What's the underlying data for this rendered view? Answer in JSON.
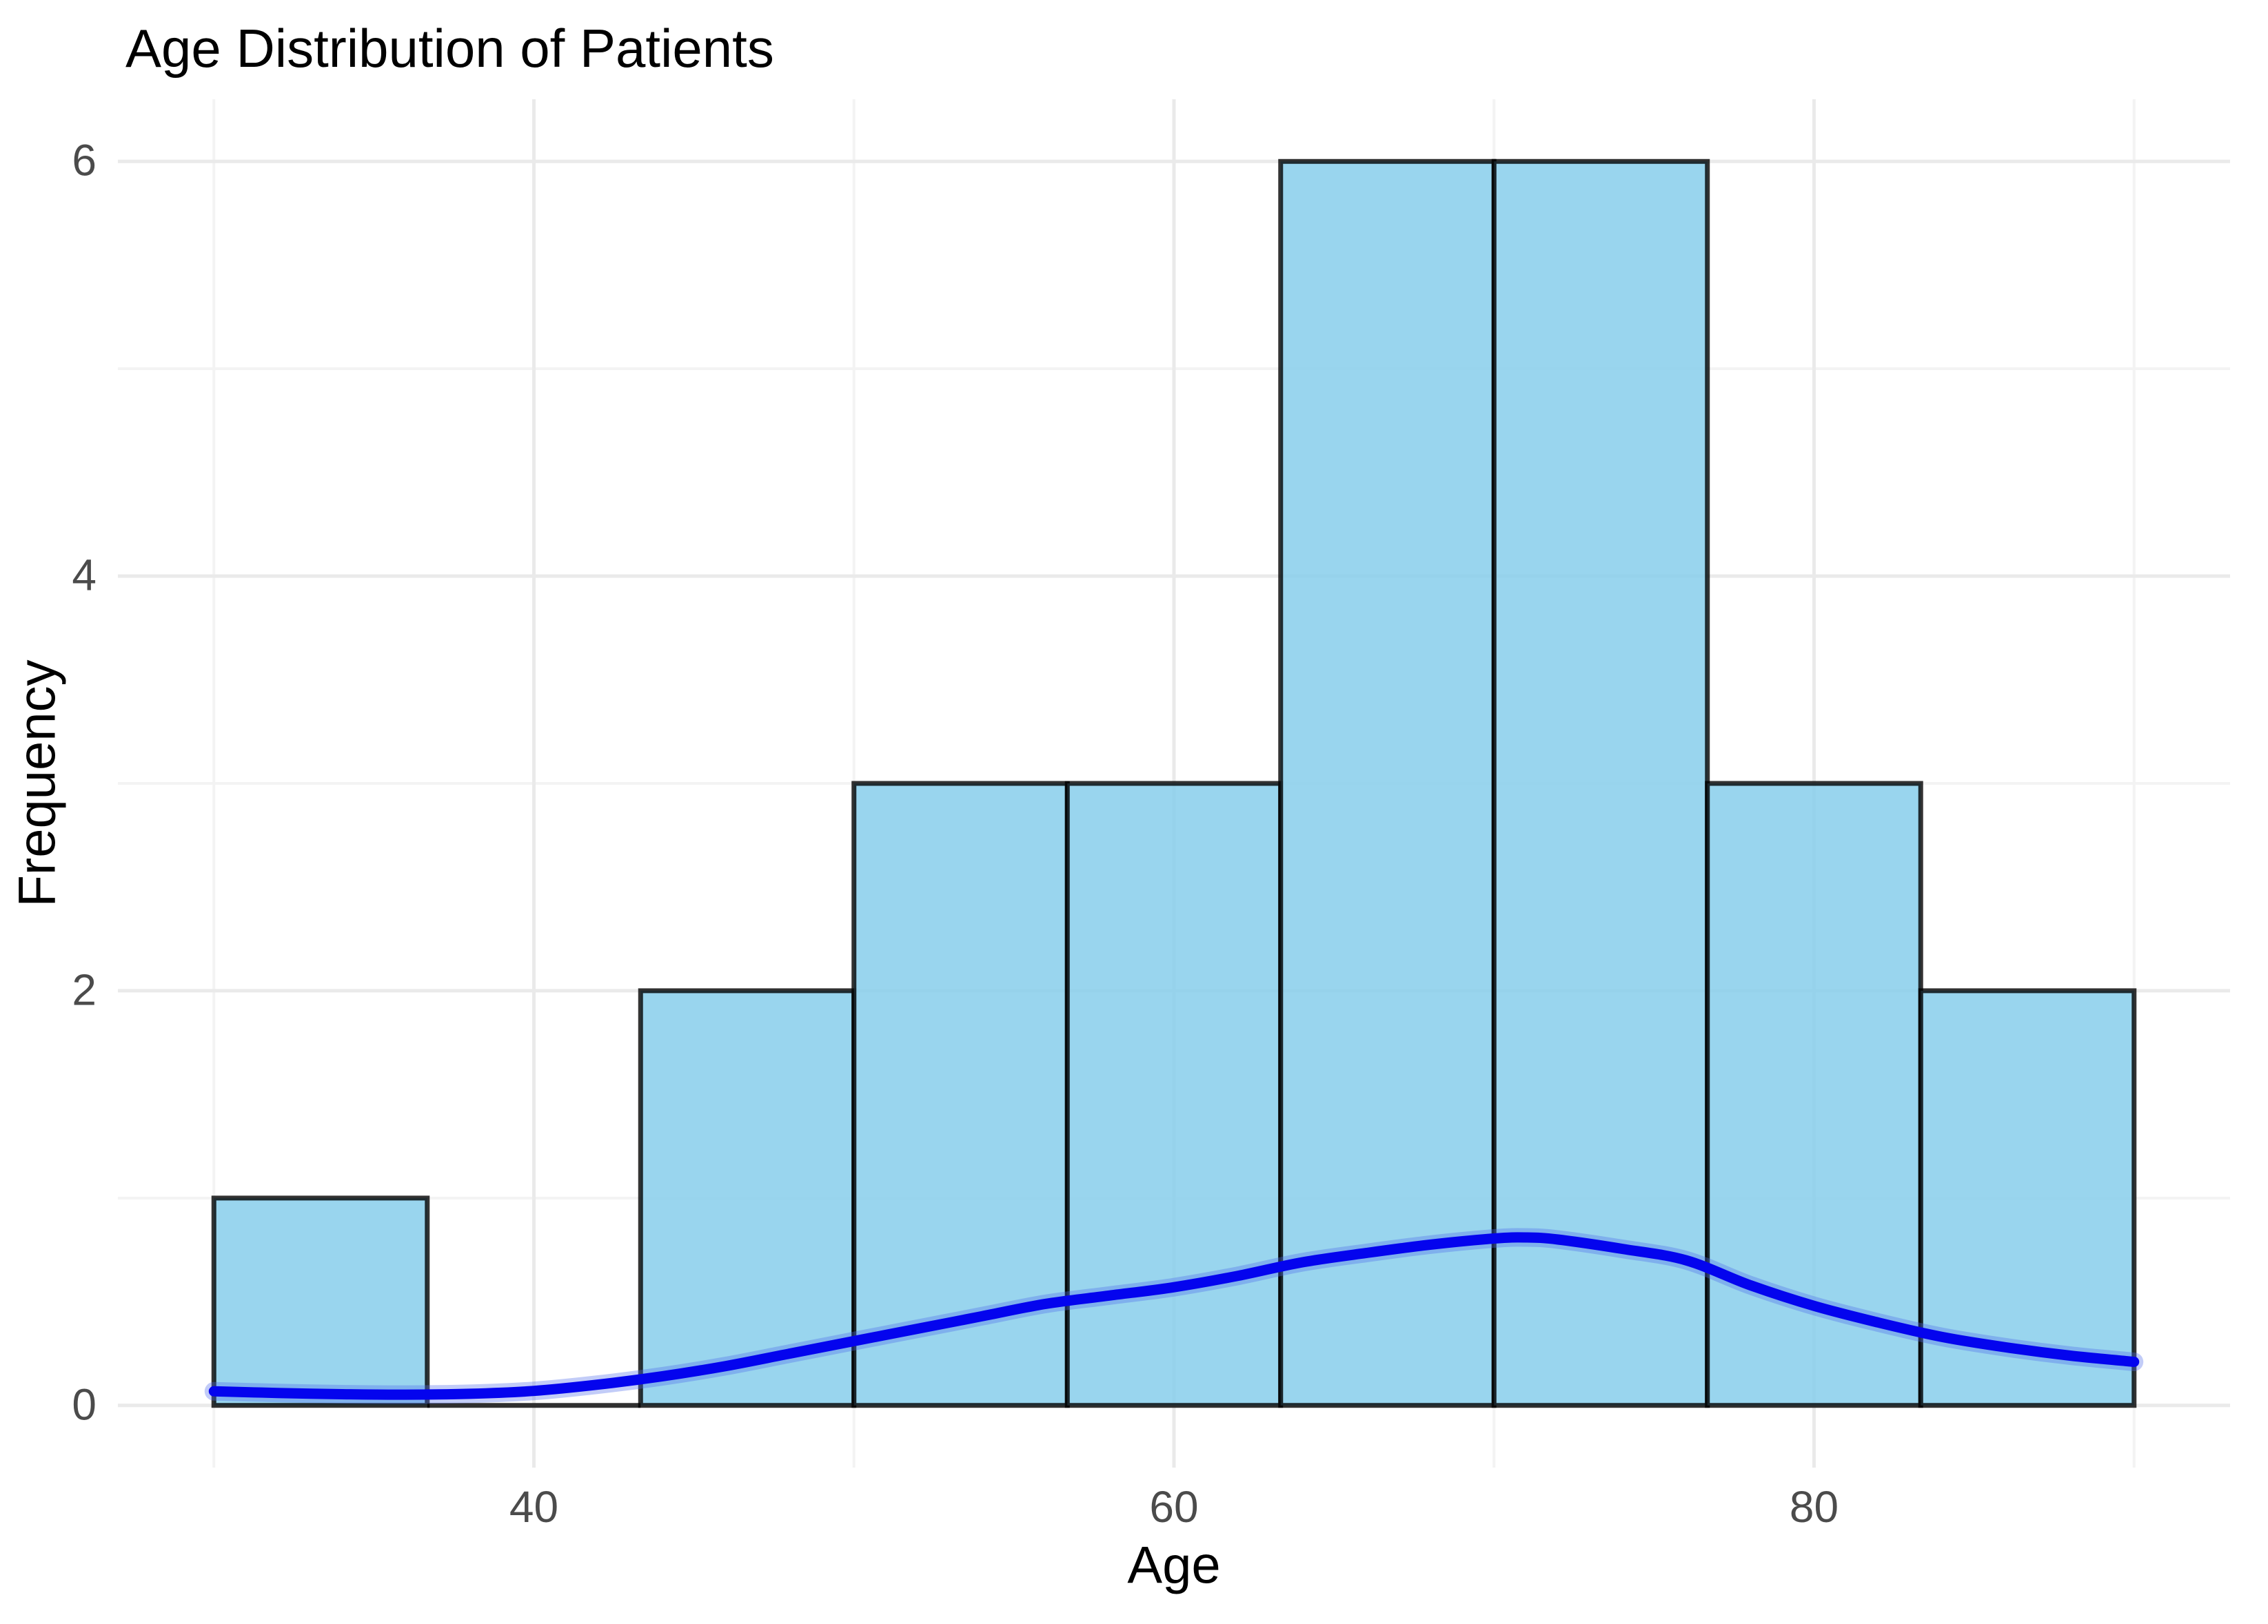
{
  "chart_data": {
    "type": "histogram",
    "title": "Age Distribution of Patients",
    "xlabel": "Age",
    "ylabel": "Frequency",
    "xlim": [
      27,
      93
    ],
    "ylim": [
      -0.3,
      6.3
    ],
    "x_ticks": [
      40,
      60,
      80
    ],
    "y_ticks": [
      0,
      2,
      4,
      6
    ],
    "x_minor_gridlines": [
      30,
      50,
      70,
      90
    ],
    "y_minor_gridlines": [
      1,
      3,
      5
    ],
    "grid": "on",
    "legend": "none",
    "bins": {
      "bin_start": 30,
      "bin_end": 90,
      "bin_width": 6.6667,
      "bin_edges": [
        30,
        36.67,
        43.33,
        50,
        56.67,
        63.33,
        70,
        76.67,
        83.33,
        90
      ],
      "counts": [
        1,
        0,
        2,
        3,
        3,
        6,
        6,
        3,
        2
      ],
      "total_n": 26
    },
    "density_curve": {
      "name": "kde-density-overlay",
      "x": [
        30,
        32,
        34,
        36,
        38,
        40,
        42,
        44,
        46,
        48,
        50,
        52,
        54,
        56,
        58,
        60,
        62,
        64,
        66,
        68,
        70,
        71,
        72,
        74,
        76,
        78,
        80,
        82,
        84,
        86,
        88,
        90
      ],
      "y": [
        0.068,
        0.06,
        0.054,
        0.052,
        0.056,
        0.07,
        0.1,
        0.14,
        0.19,
        0.25,
        0.31,
        0.37,
        0.43,
        0.49,
        0.53,
        0.57,
        0.625,
        0.69,
        0.735,
        0.775,
        0.805,
        0.81,
        0.8,
        0.755,
        0.7,
        0.58,
        0.48,
        0.4,
        0.33,
        0.28,
        0.24,
        0.21
      ]
    },
    "colors": {
      "bar_fill": "#87CEEB",
      "bar_fill_alpha": 0.85,
      "bar_border": "rgba(0,0,0,0.8)",
      "curve": "#0404EE",
      "curve_halo": "rgba(80,110,235,0.35)",
      "grid_major": "#EAEAEA",
      "grid_minor": "#F3F3F3",
      "tick_text": "#4b4b4b",
      "title_text": "#000000",
      "background": "#FFFFFF"
    }
  }
}
